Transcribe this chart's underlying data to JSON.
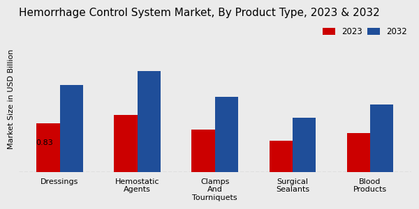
{
  "title": "Hemorrhage Control System Market, By Product Type, 2023 & 2032",
  "ylabel": "Market Size in USD Billion",
  "categories": [
    "Dressings",
    "Hemostatic\nAgents",
    "Clamps\nAnd\nTourniquets",
    "Surgical\nSealants",
    "Blood\nProducts"
  ],
  "values_2023": [
    0.83,
    0.97,
    0.72,
    0.53,
    0.66
  ],
  "values_2032": [
    1.48,
    1.72,
    1.28,
    0.92,
    1.15
  ],
  "color_2023": "#cc0000",
  "color_2032": "#1f4e99",
  "annotation_text": "0.83",
  "annotation_bar": 0,
  "legend_labels": [
    "2023",
    "2032"
  ],
  "bar_width": 0.3,
  "background_color": "#ebebeb",
  "grid_color": "#aaaaaa",
  "title_fontsize": 11,
  "ylabel_fontsize": 8,
  "tick_fontsize": 8
}
